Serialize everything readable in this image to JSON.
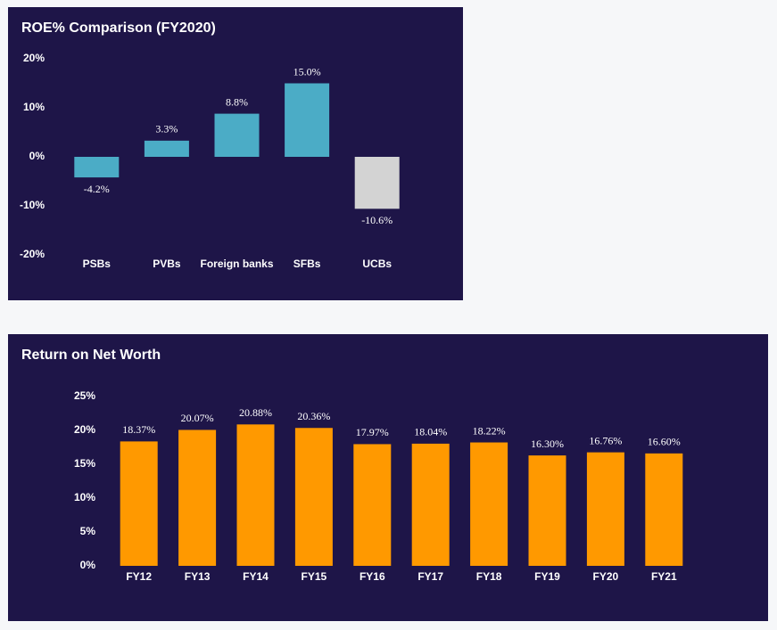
{
  "chart_data": [
    {
      "type": "bar",
      "title": "ROE% Comparison (FY2020)",
      "categories": [
        "PSBs",
        "PVBs",
        "Foreign banks",
        "SFBs",
        "UCBs"
      ],
      "values": [
        -4.2,
        3.3,
        8.8,
        15.0,
        -10.6
      ],
      "value_labels": [
        "-4.2%",
        "3.3%",
        "8.8%",
        "15.0%",
        "-10.6%"
      ],
      "colors": [
        "#4bacc6",
        "#4bacc6",
        "#4bacc6",
        "#4bacc6",
        "#d3d3d3"
      ],
      "ylim": [
        -20,
        20
      ],
      "yticks": [
        {
          "value": -20,
          "label": "-20%"
        },
        {
          "value": -10,
          "label": "-10%"
        },
        {
          "value": 0,
          "label": "0%"
        },
        {
          "value": 10,
          "label": "10%"
        },
        {
          "value": 20,
          "label": "20%"
        }
      ],
      "grid": false
    },
    {
      "type": "bar",
      "title": "Return on Net Worth",
      "categories": [
        "FY12",
        "FY13",
        "FY14",
        "FY15",
        "FY16",
        "FY17",
        "FY18",
        "FY19",
        "FY20",
        "FY21"
      ],
      "values": [
        18.37,
        20.07,
        20.88,
        20.36,
        17.97,
        18.04,
        18.22,
        16.3,
        16.76,
        16.6
      ],
      "value_labels": [
        "18.37%",
        "20.07%",
        "20.88%",
        "20.36%",
        "17.97%",
        "18.04%",
        "18.22%",
        "16.30%",
        "16.76%",
        "16.60%"
      ],
      "colors": [
        "#ff9900",
        "#ff9900",
        "#ff9900",
        "#ff9900",
        "#ff9900",
        "#ff9900",
        "#ff9900",
        "#ff9900",
        "#ff9900",
        "#ff9900"
      ],
      "ylim": [
        0,
        25
      ],
      "yticks": [
        {
          "value": 0,
          "label": "0%"
        },
        {
          "value": 5,
          "label": "5%"
        },
        {
          "value": 10,
          "label": "10%"
        },
        {
          "value": 15,
          "label": "15%"
        },
        {
          "value": 20,
          "label": "20%"
        },
        {
          "value": 25,
          "label": "25%"
        }
      ],
      "grid": false
    }
  ]
}
